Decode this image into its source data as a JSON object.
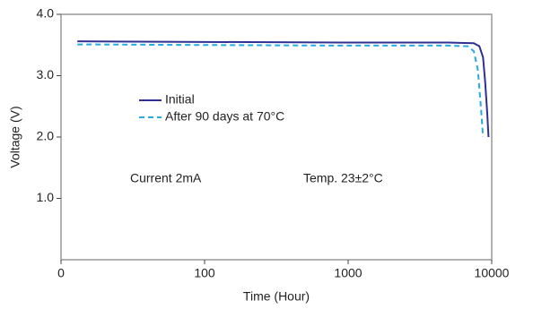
{
  "chart_data": {
    "type": "line",
    "x_label": "Time (Hour)",
    "y_label": "Voltage (V)",
    "x_scale": "log",
    "xlim": [
      10,
      10000
    ],
    "xticks": [
      {
        "value": 10,
        "label": "0"
      },
      100,
      1000,
      10000
    ],
    "ylim": [
      0,
      4
    ],
    "yticks": [
      {
        "value": 1,
        "label": "1.0"
      },
      {
        "value": 2,
        "label": "2.0"
      },
      {
        "value": 3,
        "label": "3.0"
      },
      {
        "value": 4,
        "label": "4.0"
      }
    ],
    "series": [
      {
        "name": "Initial",
        "color": "#2e3192",
        "dash": "solid",
        "x": [
          13,
          100,
          1000,
          5000,
          7500,
          8200,
          8700,
          9000,
          9300,
          9500
        ],
        "values": [
          3.56,
          3.55,
          3.54,
          3.54,
          3.53,
          3.48,
          3.3,
          2.9,
          2.4,
          2.0
        ]
      },
      {
        "name": "After 90 days at 70°C",
        "color": "#29abe2",
        "dash": "dashed",
        "x": [
          13,
          100,
          1000,
          5000,
          6800,
          7500,
          8000,
          8400,
          8700
        ],
        "values": [
          3.51,
          3.5,
          3.49,
          3.49,
          3.48,
          3.4,
          3.1,
          2.5,
          2.0
        ]
      }
    ],
    "annotations": [
      "Current 2mA",
      "Temp. 23±2°C"
    ]
  }
}
